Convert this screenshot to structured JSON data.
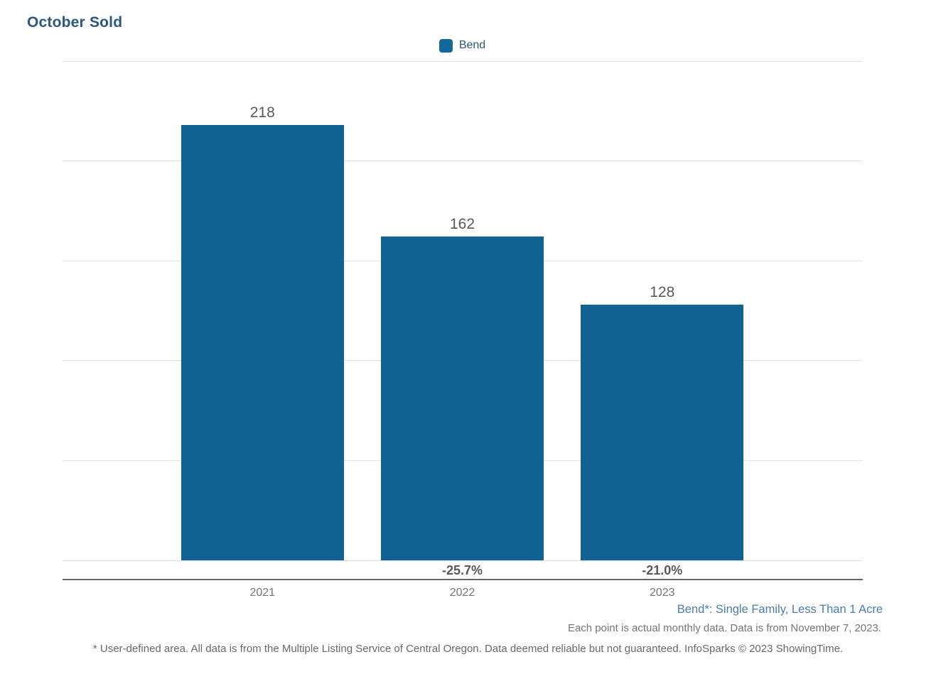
{
  "title": "October Sold",
  "legend": {
    "label": "Bend",
    "swatch_color": "#15689c"
  },
  "chart_data": {
    "type": "bar",
    "title": "October Sold",
    "series_name": "Bend",
    "categories": [
      "2021",
      "2022",
      "2023"
    ],
    "values": [
      218,
      162,
      128
    ],
    "value_labels": [
      "218",
      "162",
      "128"
    ],
    "pct_change_labels": [
      "",
      "-25.7%",
      "-21.0%"
    ],
    "xlabel": "",
    "ylabel": "",
    "ylim": [
      0,
      250
    ],
    "yticks": [
      0,
      50,
      100,
      150,
      200,
      250
    ],
    "grid": true,
    "legend_position": "top-center",
    "bar_color": "#0f6291",
    "bar_centers_pct": [
      25,
      50,
      75
    ],
    "bar_width_pct": 20.36
  },
  "footnotes": {
    "series_note": "Bend*: Single Family, Less Than 1 Acre",
    "data_note": "Each point is actual monthly data. Data is from November 7, 2023.",
    "disclaimer": "* User-defined area. All data is from the Multiple Listing Service of Central Oregon. Data deemed reliable but not guaranteed. InfoSparks © 2023 ShowingTime."
  },
  "colors": {
    "title_text": "#2a5783",
    "bar": "#0f6291",
    "legend_text": "#2a5783",
    "gridline": "#e2e2e2",
    "axis_line": "#666666",
    "tick_text": "#757575",
    "value_text": "#595959",
    "footnote_blue": "#4a7cb0",
    "footnote_gray": "#757575"
  }
}
